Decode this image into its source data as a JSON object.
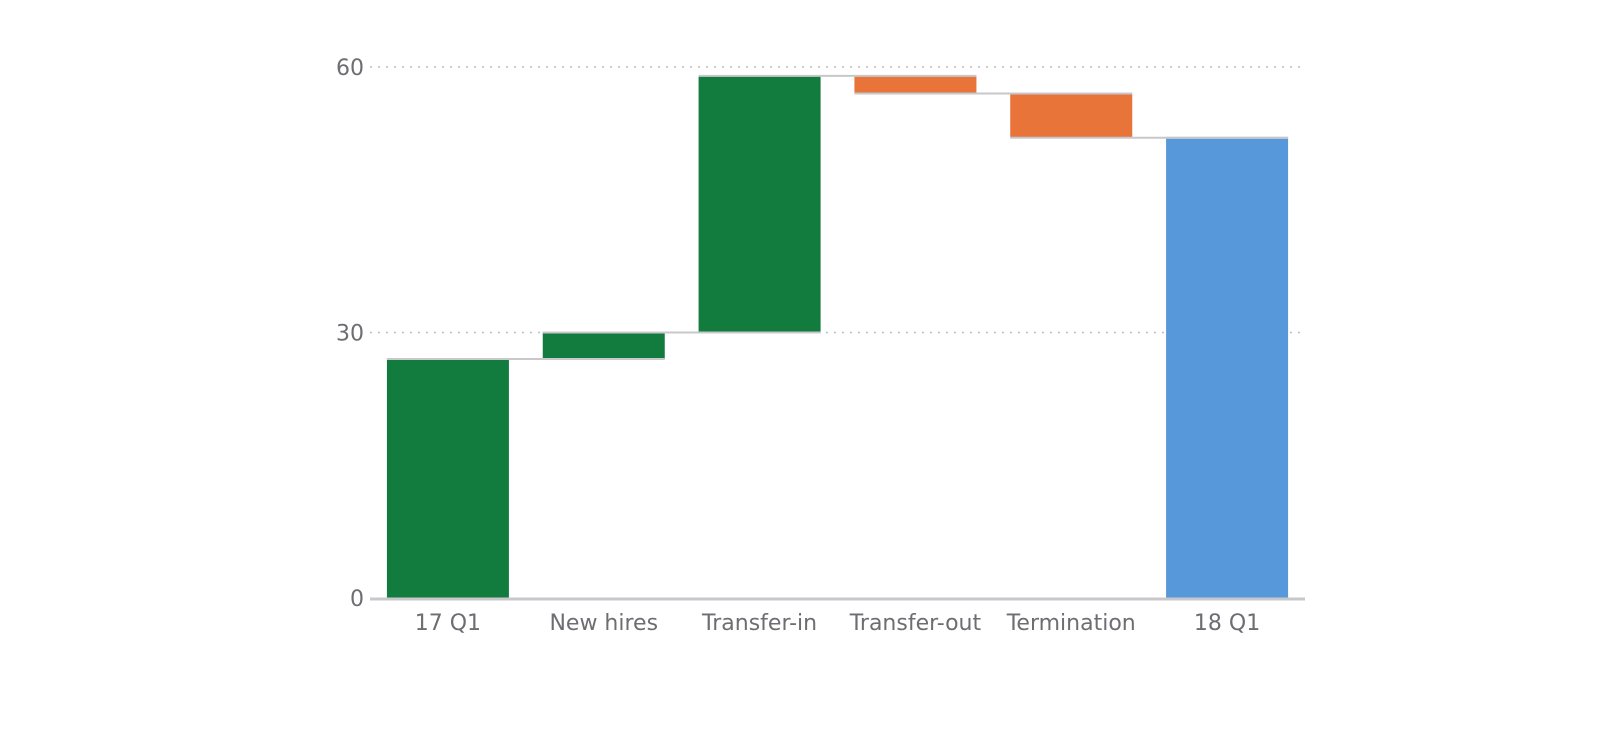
{
  "chart_data": {
    "type": "bar",
    "subtype": "waterfall",
    "title": "",
    "xlabel": "",
    "ylabel": "",
    "ylim": [
      0,
      60
    ],
    "yticks": [
      0,
      30,
      60
    ],
    "grid": "horizontal-dotted",
    "legend": "none",
    "categories": [
      "17 Q1",
      "New hires",
      "Transfer-in",
      "Transfer-out",
      "Termination",
      "18 Q1"
    ],
    "steps": [
      {
        "label": "17 Q1",
        "start": 0,
        "end": 27,
        "kind": "total"
      },
      {
        "label": "New hires",
        "start": 27,
        "end": 30,
        "kind": "increase"
      },
      {
        "label": "Transfer-in",
        "start": 30,
        "end": 59,
        "kind": "increase"
      },
      {
        "label": "Transfer-out",
        "start": 59,
        "end": 57,
        "kind": "decrease"
      },
      {
        "label": "Termination",
        "start": 57,
        "end": 52,
        "kind": "decrease"
      },
      {
        "label": "18 Q1",
        "start": 0,
        "end": 52,
        "kind": "total-end"
      }
    ],
    "colors": {
      "total": "#127c3f",
      "increase": "#127c3f",
      "decrease": "#e8743a",
      "total-end": "#5698d9",
      "connector": "#c8c8cc",
      "grid": "#bdbdc2",
      "axis": "#c8c8cc"
    }
  }
}
